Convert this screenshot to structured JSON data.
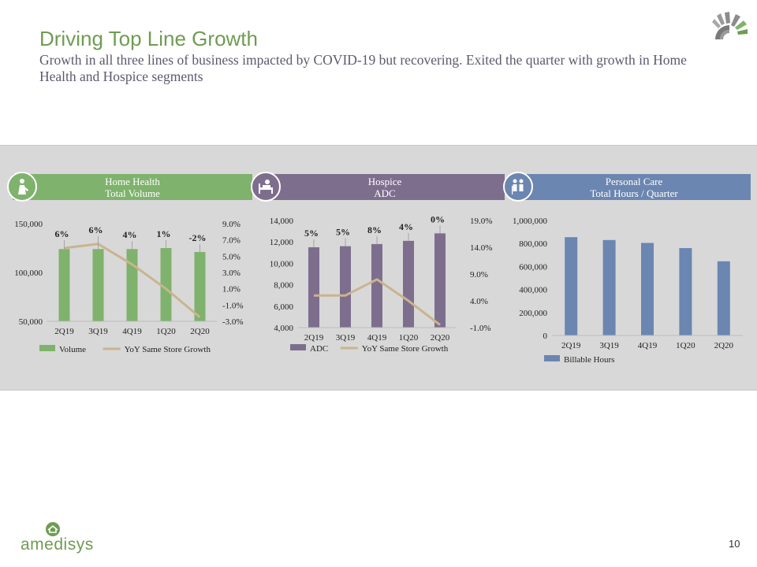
{
  "title": "Driving Top Line Growth",
  "subtitle": "Growth in all three lines of business impacted by COVID-19 but recovering. Exited the quarter with growth in Home Health and Hospice segments",
  "brand": "amedisys",
  "page_number": "10",
  "colors": {
    "green": "#7fb26c",
    "purple": "#7e6e8e",
    "blue": "#6b86b0",
    "tan": "#c9b48f",
    "title_green": "#6f9c52"
  },
  "segments": [
    {
      "header": [
        "Home Health",
        "Total Volume"
      ],
      "icon": "caregiver-icon"
    },
    {
      "header": [
        "Hospice",
        "ADC"
      ],
      "icon": "patient-bed-icon"
    },
    {
      "header": [
        "Personal Care",
        "Total Hours / Quarter"
      ],
      "icon": "elderly-couple-icon"
    }
  ],
  "chart_data": [
    {
      "type": "bar",
      "categories": [
        "2Q19",
        "3Q19",
        "4Q19",
        "1Q20",
        "2Q20"
      ],
      "series": [
        {
          "name": "Volume",
          "values": [
            124000,
            124000,
            124000,
            125000,
            121000
          ],
          "axis": "left"
        },
        {
          "name": "YoY Same Store Growth",
          "type": "line",
          "values": [
            6.0,
            6.5,
            4.0,
            1.0,
            -2.5
          ],
          "axis": "right"
        }
      ],
      "data_labels": [
        "6%",
        "6%",
        "4%",
        "1%",
        "-2%"
      ],
      "ylim": [
        50000,
        150000
      ],
      "yticks": [
        "50,000",
        "100,000",
        "150,000"
      ],
      "ylim_right": [
        -3,
        9
      ],
      "yticks_right": [
        "-3.0%",
        "-1.0%",
        "1.0%",
        "3.0%",
        "5.0%",
        "7.0%",
        "9.0%"
      ],
      "legend": [
        "Volume",
        "YoY Same Store Growth"
      ],
      "legend_position": "bottom"
    },
    {
      "type": "bar",
      "categories": [
        "2Q19",
        "3Q19",
        "4Q19",
        "1Q20",
        "2Q20"
      ],
      "series": [
        {
          "name": "ADC",
          "values": [
            11500,
            11600,
            11800,
            12100,
            12800
          ],
          "axis": "left"
        },
        {
          "name": "YoY Same Store Growth",
          "type": "line",
          "values": [
            5.0,
            5.0,
            8.0,
            4.0,
            -0.5
          ],
          "axis": "right"
        }
      ],
      "data_labels": [
        "5%",
        "5%",
        "8%",
        "4%",
        "0%"
      ],
      "ylim": [
        4000,
        14000
      ],
      "yticks": [
        "4,000",
        "6,000",
        "8,000",
        "10,000",
        "12,000",
        "14,000"
      ],
      "ylim_right": [
        -1,
        19
      ],
      "yticks_right": [
        "-1.0%",
        "4.0%",
        "9.0%",
        "14.0%",
        "19.0%"
      ],
      "legend": [
        "ADC",
        "YoY Same Store Growth"
      ],
      "legend_position": "bottom"
    },
    {
      "type": "bar",
      "categories": [
        "2Q19",
        "3Q19",
        "4Q19",
        "1Q20",
        "2Q20"
      ],
      "series": [
        {
          "name": "Billable Hours",
          "values": [
            855000,
            830000,
            805000,
            760000,
            645000
          ]
        }
      ],
      "ylim": [
        0,
        1000000
      ],
      "yticks": [
        "0",
        "200,000",
        "400,000",
        "600,000",
        "800,000",
        "1,000,000"
      ],
      "legend": [
        "Billable Hours"
      ],
      "legend_position": "bottom"
    }
  ]
}
